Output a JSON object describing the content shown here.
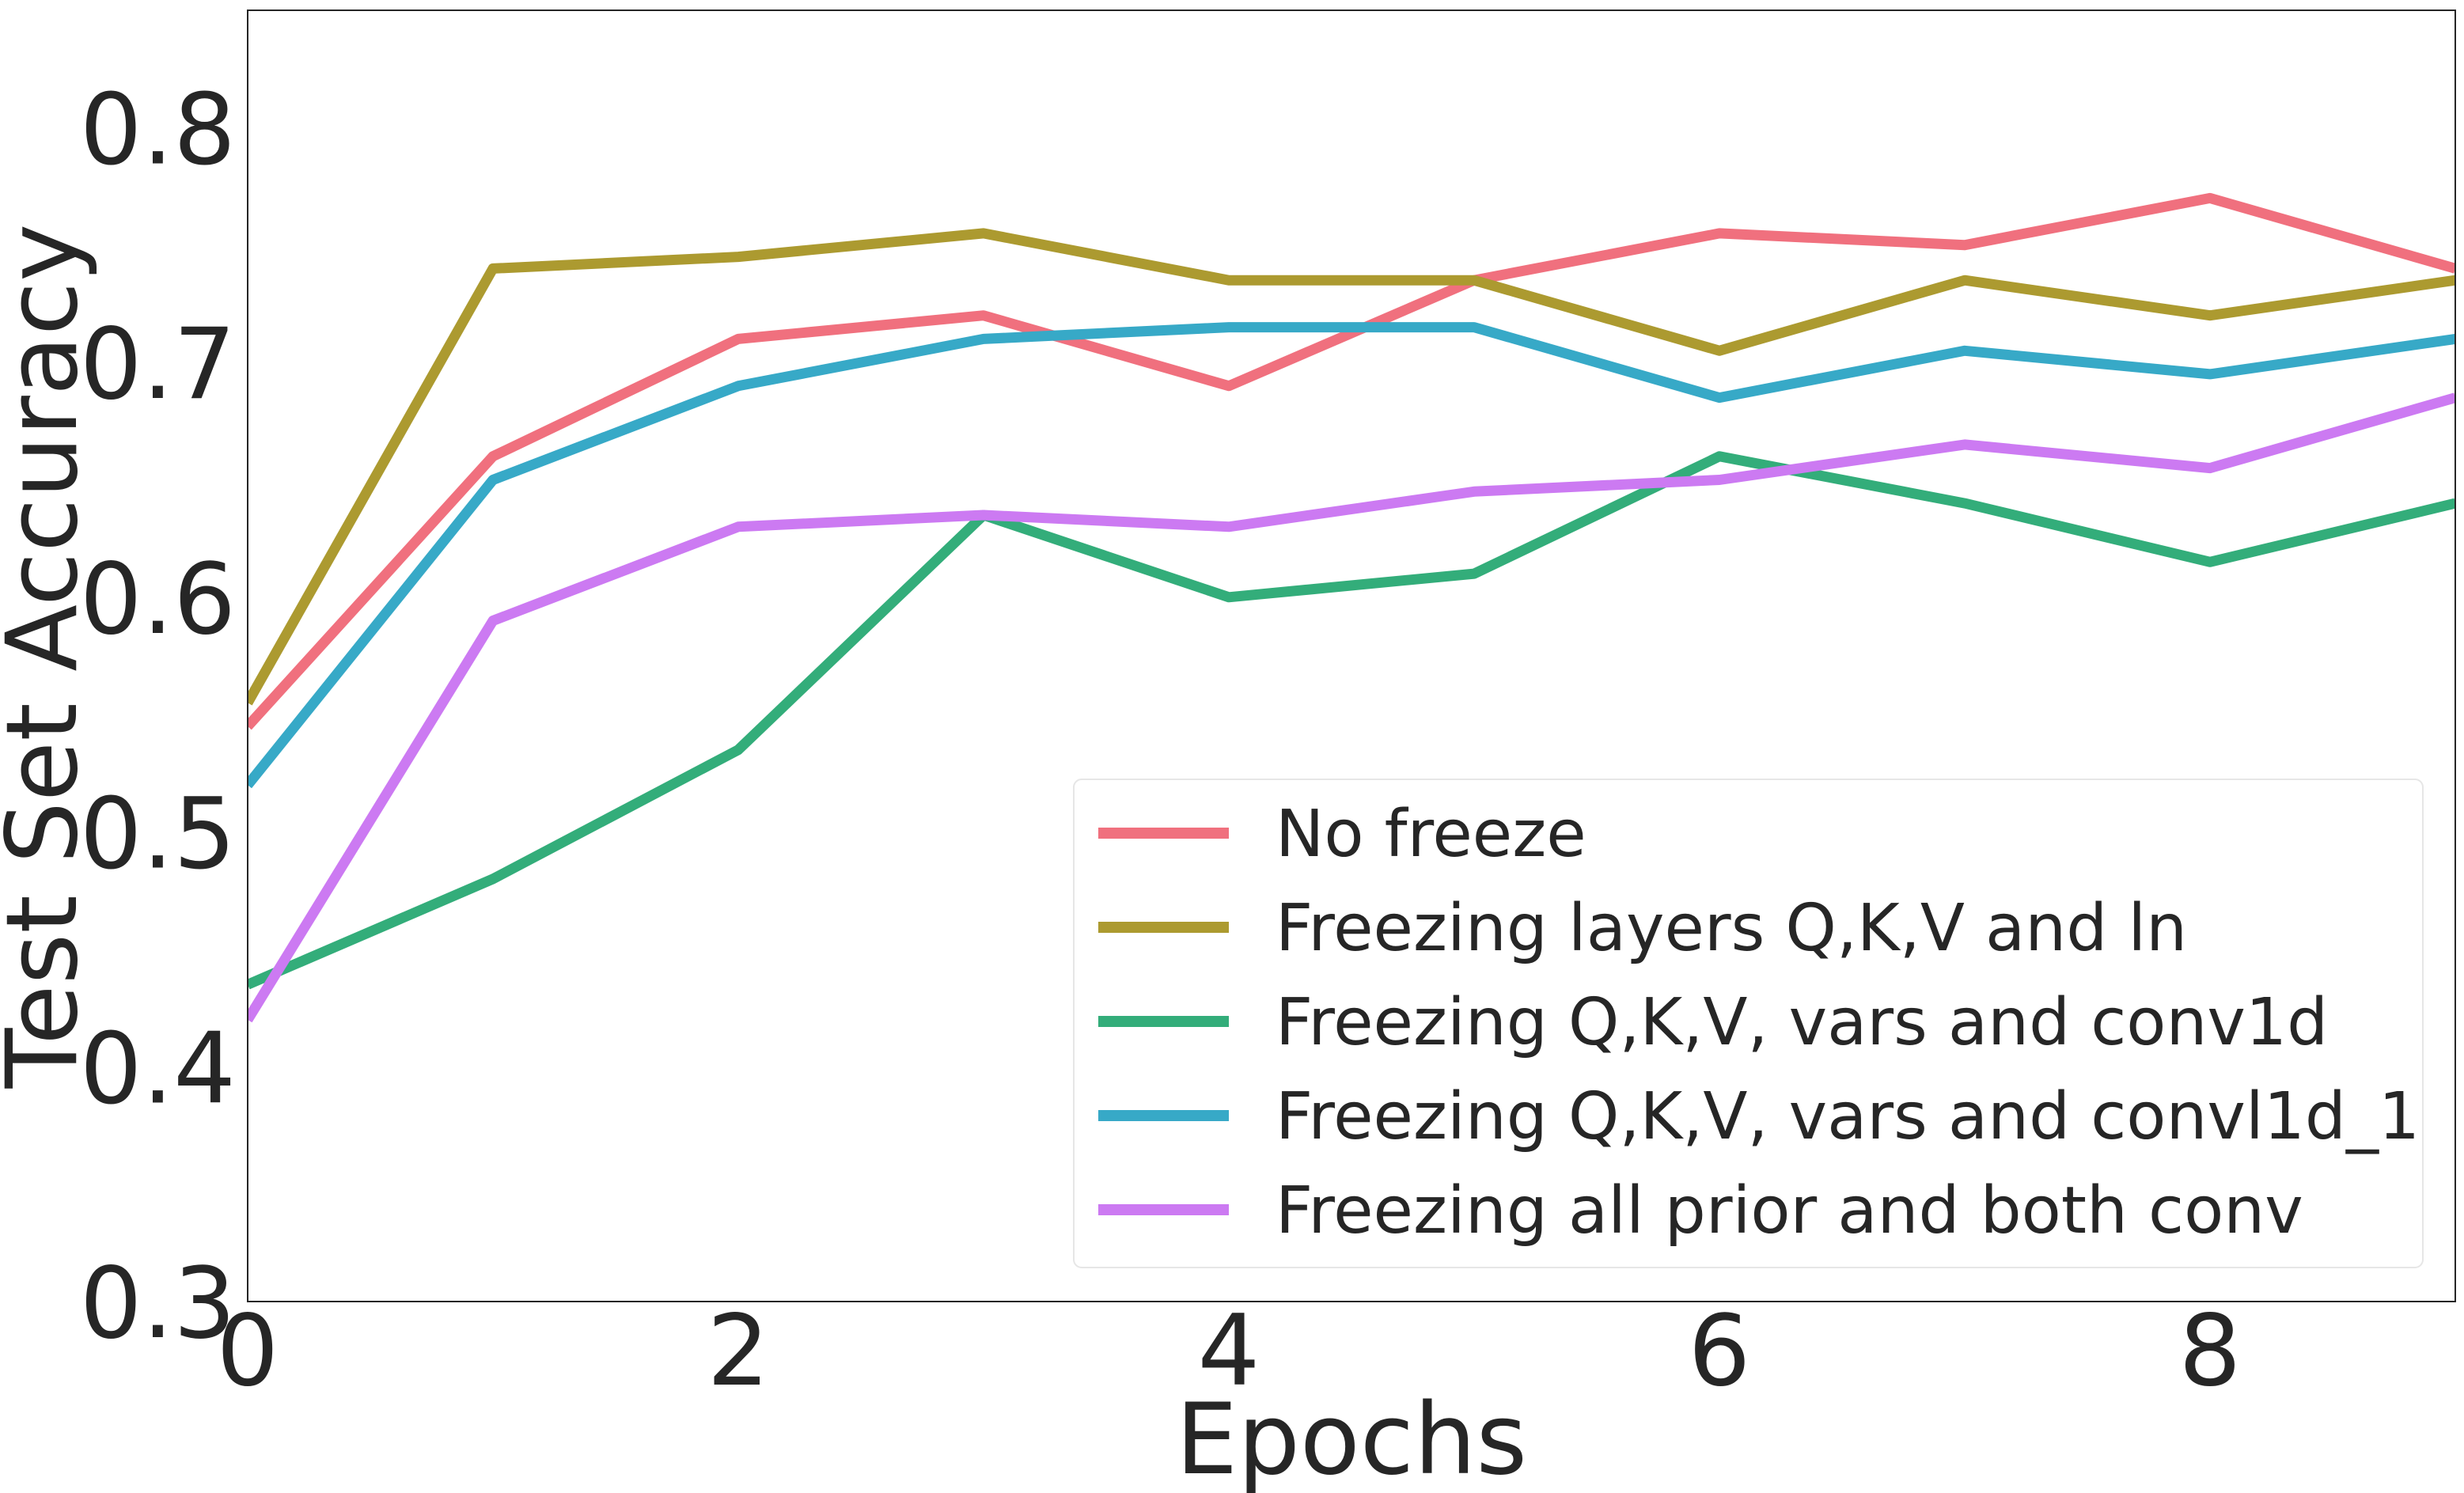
{
  "chart_data": {
    "type": "line",
    "title": "",
    "xlabel": "Epochs",
    "ylabel": "Test Set Accuracy",
    "xlim": [
      0,
      9
    ],
    "ylim": [
      0.3,
      0.85
    ],
    "xticks": [
      0,
      2,
      4,
      6,
      8
    ],
    "xtick_labels": [
      "0",
      "2",
      "4",
      "6",
      "8"
    ],
    "yticks": [
      0.3,
      0.4,
      0.5,
      0.6,
      0.7,
      0.8
    ],
    "ytick_labels": [
      "0.3",
      "0.4",
      "0.5",
      "0.6",
      "0.7",
      "0.8"
    ],
    "grid": false,
    "legend_position": "lower-right",
    "x": [
      0,
      1,
      2,
      3,
      4,
      5,
      6,
      7,
      8,
      9
    ],
    "series": [
      {
        "name": "No freeze",
        "color": "#f0707e",
        "values": [
          0.545,
          0.66,
          0.71,
          0.72,
          0.69,
          0.735,
          0.755,
          0.75,
          0.77,
          0.74
        ]
      },
      {
        "name": "Freezing layers Q,K,V and ln",
        "color": "#ac9a30",
        "values": [
          0.555,
          0.74,
          0.745,
          0.755,
          0.735,
          0.735,
          0.705,
          0.735,
          0.72,
          0.735
        ]
      },
      {
        "name": "Freezing Q,K,V, vars and conv1d",
        "color": "#33ad7a",
        "values": [
          0.435,
          0.48,
          0.535,
          0.635,
          0.6,
          0.61,
          0.66,
          0.64,
          0.615,
          0.64
        ]
      },
      {
        "name": "Freezing Q,K,V, vars and convl1d_1",
        "color": "#37a9c7",
        "values": [
          0.52,
          0.65,
          0.69,
          0.71,
          0.715,
          0.715,
          0.685,
          0.705,
          0.695,
          0.71
        ]
      },
      {
        "name": "Freezing all prior and both conv",
        "color": "#cc7af2",
        "values": [
          0.42,
          0.59,
          0.63,
          0.635,
          0.63,
          0.645,
          0.65,
          0.665,
          0.655,
          0.685
        ]
      }
    ]
  }
}
